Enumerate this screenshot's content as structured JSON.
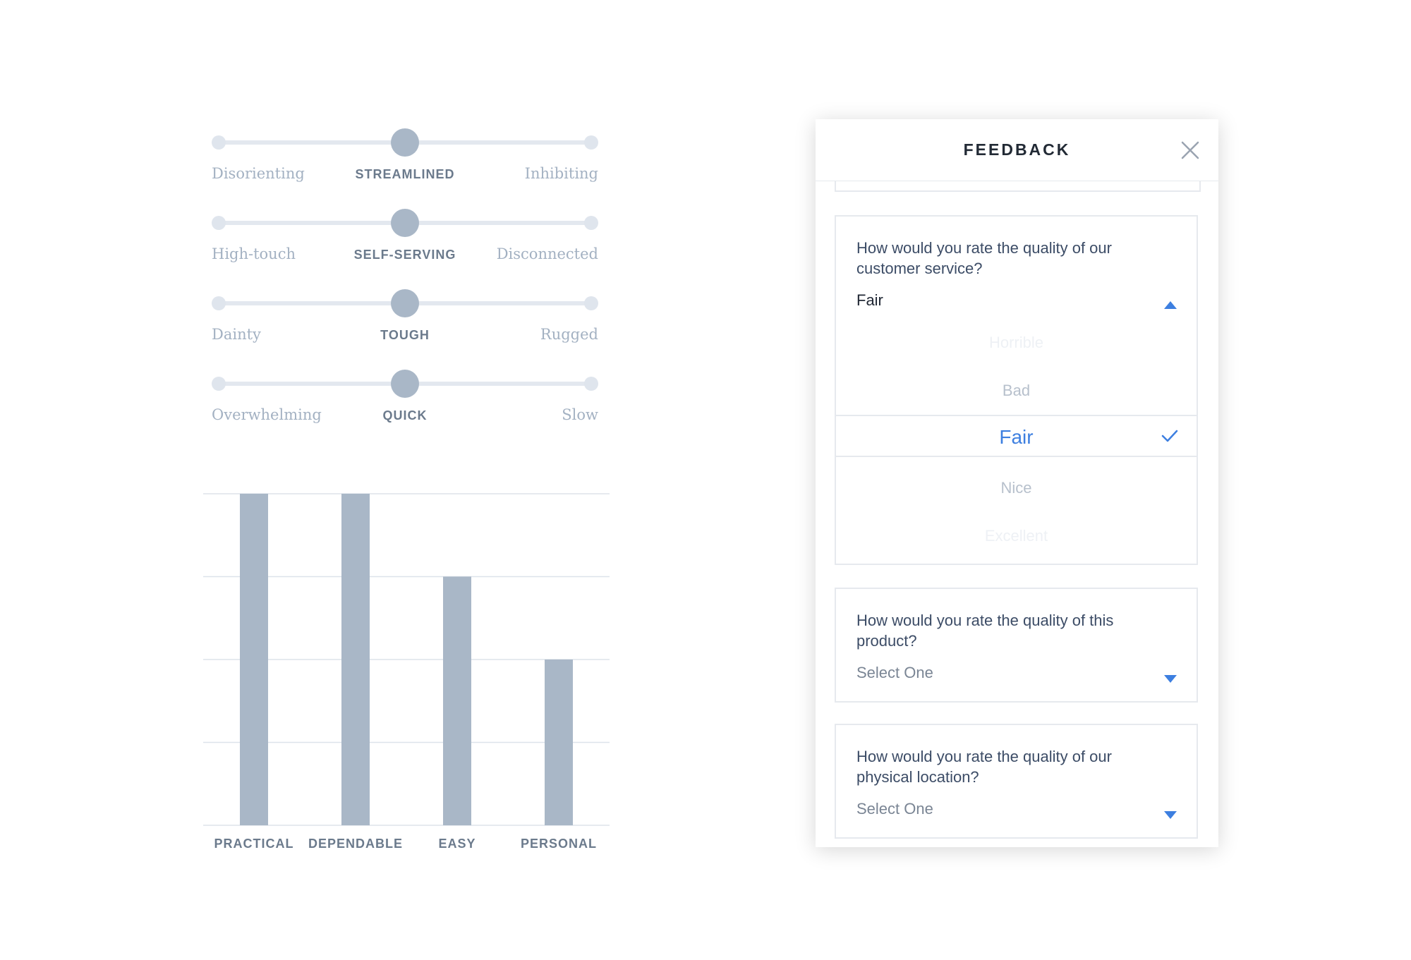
{
  "sliders": [
    {
      "left": "Disorienting",
      "center": "STREAMLINED",
      "right": "Inhibiting"
    },
    {
      "left": "High-touch",
      "center": "SELF-SERVING",
      "right": "Disconnected"
    },
    {
      "left": "Dainty",
      "center": "TOUGH",
      "right": "Rugged"
    },
    {
      "left": "Overwhelming",
      "center": "QUICK",
      "right": "Slow"
    }
  ],
  "chart_data": {
    "type": "bar",
    "categories": [
      "PRACTICAL",
      "DEPENDABLE",
      "EASY",
      "PERSONAL"
    ],
    "values": [
      4,
      4,
      3,
      2
    ],
    "ylim": [
      0,
      4
    ],
    "grid": true,
    "colors": {
      "bar": "#a9b7c7",
      "grid": "#dde3ea"
    }
  },
  "feedback": {
    "title": "FEEDBACK",
    "close_icon": "close-icon",
    "questions": [
      {
        "text": "How would you rate the quality of our customer service?",
        "value": "Fair",
        "open": true,
        "options": [
          "Horrible",
          "Bad",
          "Fair",
          "Nice",
          "Excellent"
        ],
        "selected": "Fair"
      },
      {
        "text": "How would you rate the quality of this product?",
        "value": "Select One",
        "open": false
      },
      {
        "text": "How would you rate the quality of our physical location?",
        "value": "Select One",
        "open": false
      }
    ]
  },
  "colors": {
    "accent": "#3d7fe0",
    "muted": "#a3b1c2",
    "slider_knob": "#a9b7c7"
  }
}
